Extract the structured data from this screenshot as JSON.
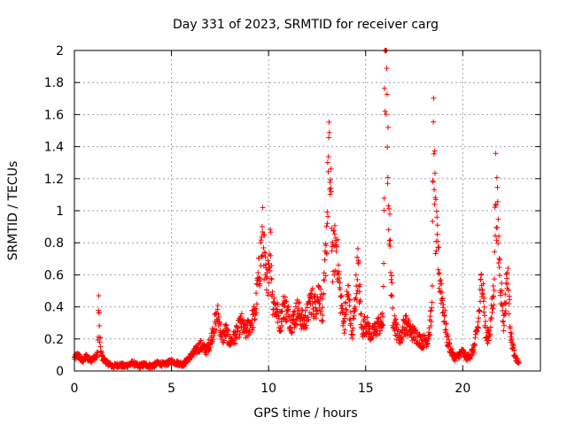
{
  "chart_data": {
    "type": "scatter",
    "title": "Day 331 of 2023, SRMTID for receiver carg",
    "xlabel": "GPS time / hours",
    "ylabel": "SRMTID / TECUs",
    "xlim": [
      0,
      24
    ],
    "ylim": [
      0,
      2
    ],
    "xticks": [
      0,
      5,
      10,
      15,
      20
    ],
    "yticks": [
      0,
      0.2,
      0.4,
      0.6,
      0.8,
      1,
      1.2,
      1.4,
      1.6,
      1.8,
      2
    ],
    "xtick_labels": [
      "0",
      "5",
      "10",
      "15",
      "20"
    ],
    "ytick_labels": [
      "0",
      "0.2",
      "0.4",
      "0.6",
      "0.8",
      "1",
      "1.2",
      "1.4",
      "1.6",
      "1.8",
      "2"
    ],
    "grid": true,
    "marker": "+",
    "color": "#ff0000",
    "series": [
      {
        "name": "SRMTID",
        "x": [
          0,
          0.2,
          0.4,
          0.6,
          0.8,
          1.0,
          1.2,
          1.25,
          1.3,
          1.4,
          1.6,
          1.8,
          2.0,
          2.3,
          2.6,
          3.0,
          3.3,
          3.6,
          4.0,
          4.3,
          4.6,
          5.0,
          5.3,
          5.6,
          5.9,
          6.2,
          6.5,
          6.8,
          7.0,
          7.2,
          7.4,
          7.6,
          7.8,
          8.0,
          8.3,
          8.6,
          8.8,
          9.0,
          9.3,
          9.5,
          9.7,
          9.9,
          10.1,
          10.2,
          10.4,
          10.6,
          10.8,
          11.0,
          11.2,
          11.5,
          11.8,
          12.0,
          12.2,
          12.4,
          12.6,
          12.8,
          13.0,
          13.1,
          13.2,
          13.3,
          13.5,
          13.7,
          13.9,
          14.1,
          14.3,
          14.6,
          14.8,
          15.0,
          15.3,
          15.6,
          15.9,
          16.0,
          16.1,
          16.2,
          16.3,
          16.4,
          16.6,
          16.8,
          17.0,
          17.3,
          17.6,
          17.9,
          18.2,
          18.4,
          18.5,
          18.6,
          18.8,
          19.0,
          19.2,
          19.4,
          19.6,
          19.8,
          20.0,
          20.2,
          20.4,
          20.6,
          20.8,
          21.0,
          21.2,
          21.4,
          21.6,
          21.7,
          21.9,
          22.1,
          22.3,
          22.5,
          22.7,
          22.9
        ],
        "y": [
          0.08,
          0.1,
          0.06,
          0.09,
          0.07,
          0.08,
          0.1,
          0.44,
          0.2,
          0.09,
          0.06,
          0.04,
          0.03,
          0.04,
          0.03,
          0.05,
          0.03,
          0.04,
          0.03,
          0.05,
          0.04,
          0.06,
          0.05,
          0.04,
          0.08,
          0.12,
          0.16,
          0.13,
          0.18,
          0.28,
          0.35,
          0.2,
          0.25,
          0.18,
          0.22,
          0.3,
          0.24,
          0.28,
          0.35,
          0.6,
          0.85,
          0.5,
          0.8,
          0.45,
          0.38,
          0.3,
          0.42,
          0.35,
          0.3,
          0.38,
          0.3,
          0.35,
          0.45,
          0.4,
          0.5,
          0.35,
          0.9,
          1.33,
          1.1,
          0.7,
          0.8,
          0.45,
          0.3,
          0.5,
          0.2,
          0.66,
          0.25,
          0.3,
          0.22,
          0.28,
          0.3,
          2.0,
          1.6,
          1.0,
          0.6,
          0.35,
          0.25,
          0.2,
          0.3,
          0.25,
          0.22,
          0.18,
          0.2,
          0.35,
          1.48,
          0.9,
          0.6,
          0.4,
          0.2,
          0.12,
          0.08,
          0.1,
          0.12,
          0.08,
          0.1,
          0.15,
          0.3,
          0.62,
          0.2,
          0.25,
          0.5,
          1.16,
          0.65,
          0.3,
          0.6,
          0.2,
          0.08,
          0.05
        ]
      }
    ]
  }
}
